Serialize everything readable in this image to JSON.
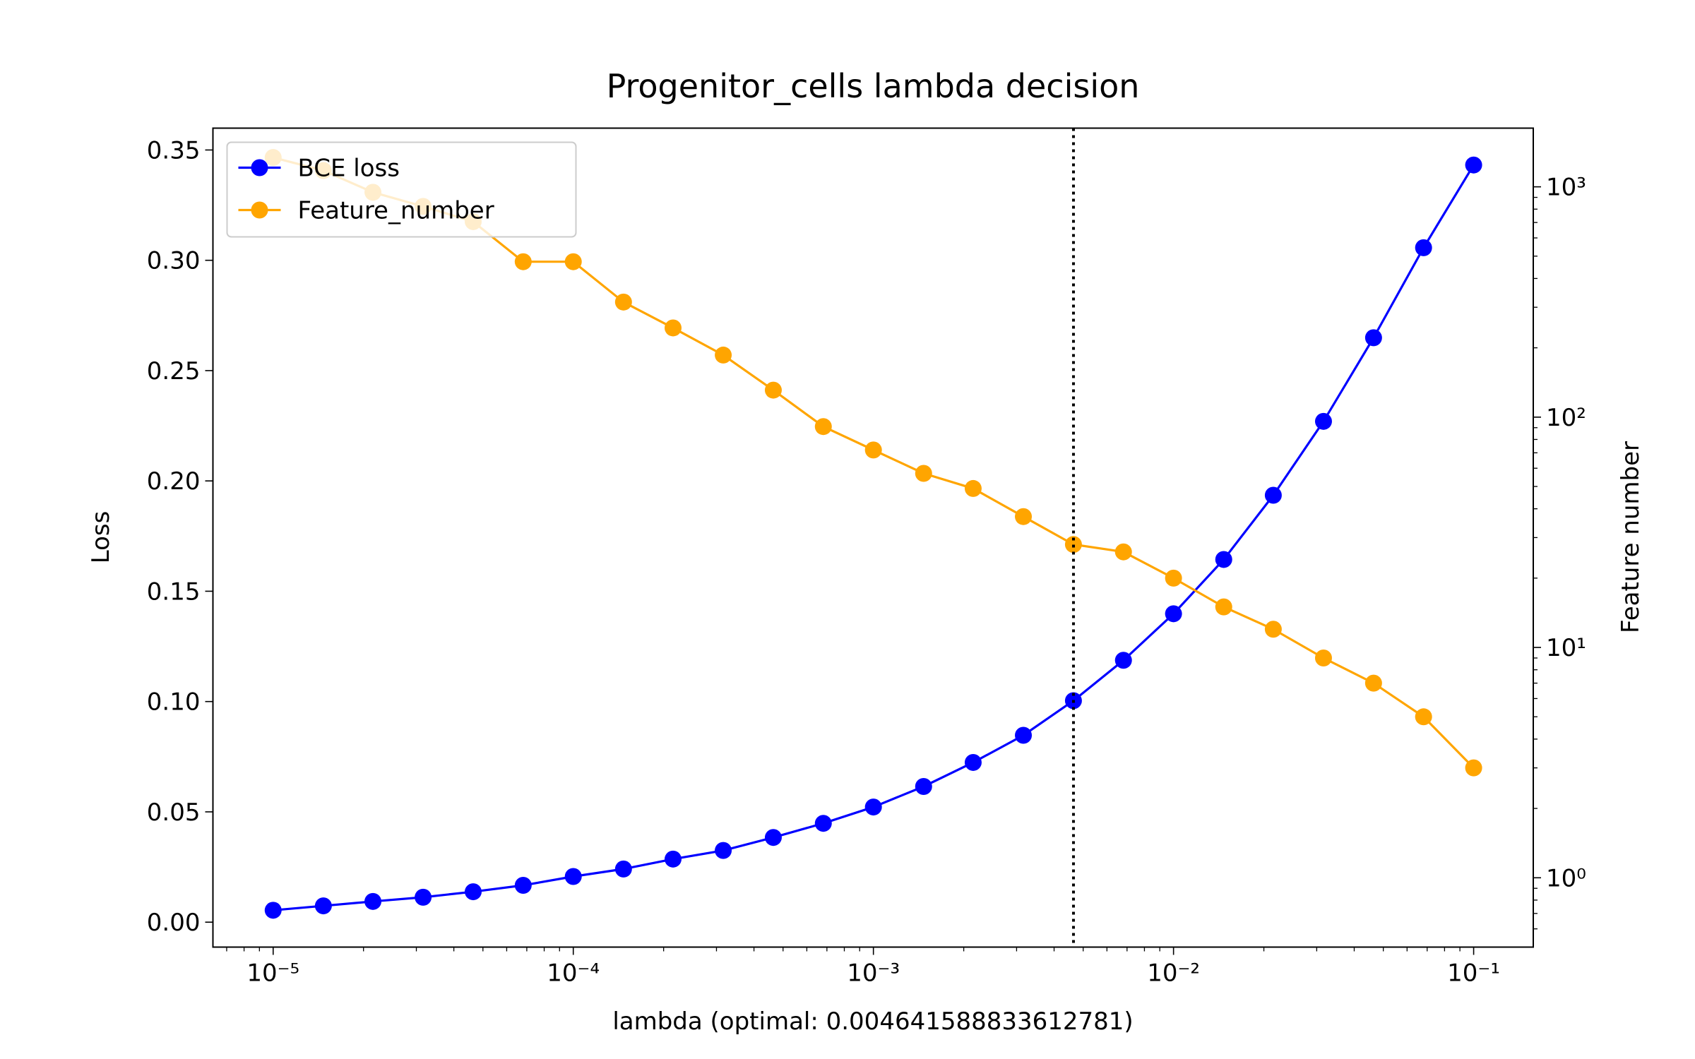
{
  "chart_data": {
    "type": "line",
    "title": "Progenitor_cells lambda decision",
    "xlabel": "lambda (optimal: 0.004641588833612781)",
    "ylabel": "Loss",
    "y2label": "Feature number",
    "xscale": "log",
    "y2scale": "log",
    "legend": "upper left",
    "vline": 0.004641588833612781,
    "x": [
      1e-05,
      1.47e-05,
      2.15e-05,
      3.16e-05,
      4.64e-05,
      6.81e-05,
      0.0001,
      0.000147,
      0.000215,
      0.000316,
      0.000464,
      0.000681,
      0.001,
      0.00147,
      0.00215,
      0.00316,
      0.00464,
      0.00681,
      0.01,
      0.0147,
      0.0215,
      0.0316,
      0.0464,
      0.0681,
      0.1
    ],
    "series": [
      {
        "name": "BCE loss",
        "color": "#0000ff",
        "axis": "y",
        "values": [
          0.0054,
          0.0074,
          0.0094,
          0.0113,
          0.0138,
          0.0167,
          0.0207,
          0.0241,
          0.0286,
          0.0325,
          0.0384,
          0.0448,
          0.0522,
          0.0615,
          0.0724,
          0.0847,
          0.1004,
          0.1187,
          0.1398,
          0.1644,
          0.1935,
          0.227,
          0.2649,
          0.3057,
          0.3432
        ]
      },
      {
        "name": "Feature_number",
        "color": "#ffa500",
        "axis": "y2",
        "values": [
          1341,
          1177,
          947,
          822,
          706,
          473,
          473,
          316,
          244,
          186,
          131,
          91,
          72,
          57,
          49,
          37,
          28,
          26,
          20,
          15,
          12,
          9,
          7,
          5,
          3
        ]
      }
    ],
    "xlim": [
      6.3e-06,
      0.158
    ],
    "xticks": [
      {
        "value": 1e-05,
        "label": "10⁻⁵"
      },
      {
        "value": 0.0001,
        "label": "10⁻⁴"
      },
      {
        "value": 0.001,
        "label": "10⁻³"
      },
      {
        "value": 0.01,
        "label": "10⁻²"
      },
      {
        "value": 0.1,
        "label": "10⁻¹"
      }
    ],
    "ylim": [
      -0.0113,
      0.3599
    ],
    "yticks": [
      {
        "value": 0,
        "label": "0.00"
      },
      0.05,
      {
        "value": 0.1,
        "label": "0.10"
      },
      0.15,
      {
        "value": 0.2,
        "label": "0.20"
      },
      0.25,
      {
        "value": 0.3,
        "label": "0.30"
      },
      0.35
    ],
    "y2lim": [
      0.5,
      1798
    ],
    "y2ticks": [
      {
        "value": 1,
        "label": "10⁰"
      },
      {
        "value": 10,
        "label": "10¹"
      },
      {
        "value": 100,
        "label": "10²"
      },
      {
        "value": 1000,
        "label": "10³"
      }
    ]
  }
}
